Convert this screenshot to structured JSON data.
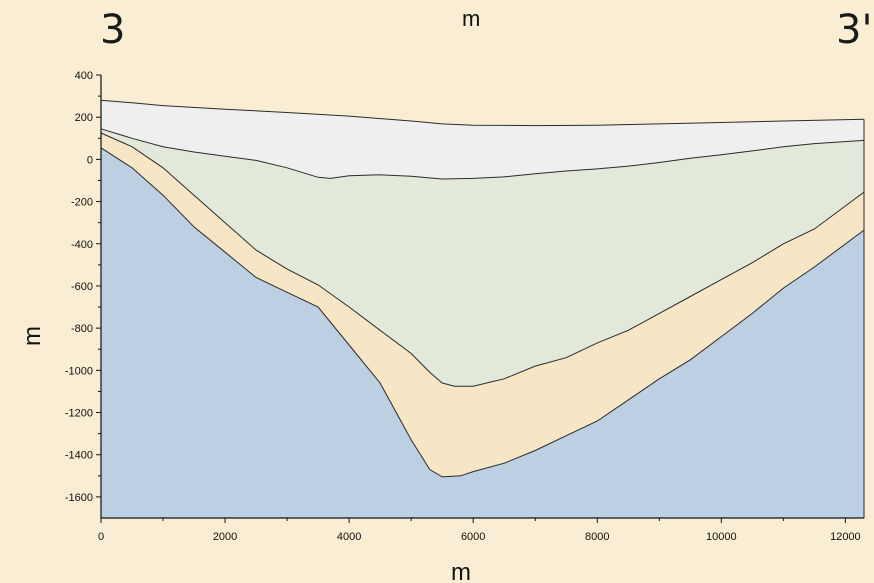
{
  "section": {
    "left_label": "3",
    "right_label": "3'",
    "top_unit": "m"
  },
  "chart_data": {
    "type": "area",
    "title": "",
    "xlabel": "m",
    "ylabel": "m",
    "xlim": [
      0,
      12300
    ],
    "ylim": [
      -1700,
      400
    ],
    "x_ticks": [
      0,
      2000,
      4000,
      6000,
      8000,
      10000,
      12000
    ],
    "y_ticks": [
      400,
      200,
      0,
      -200,
      -400,
      -600,
      -800,
      -1000,
      -1200,
      -1400,
      -1600
    ],
    "grid": false,
    "legend": "none",
    "series": [
      {
        "color": "#efefef",
        "points": [
          [
            0,
            280
          ],
          [
            500,
            268
          ],
          [
            1000,
            255
          ],
          [
            2000,
            238
          ],
          [
            3000,
            222
          ],
          [
            4000,
            205
          ],
          [
            5000,
            182
          ],
          [
            5500,
            168
          ],
          [
            6000,
            162
          ],
          [
            7000,
            160
          ],
          [
            8000,
            162
          ],
          [
            9000,
            168
          ],
          [
            10000,
            175
          ],
          [
            11000,
            182
          ],
          [
            12300,
            190
          ]
        ]
      },
      {
        "color": "#e3e9da",
        "points": [
          [
            0,
            145
          ],
          [
            500,
            100
          ],
          [
            1000,
            60
          ],
          [
            1500,
            35
          ],
          [
            2000,
            15
          ],
          [
            2500,
            -5
          ],
          [
            3000,
            -40
          ],
          [
            3500,
            -85
          ],
          [
            3700,
            -90
          ],
          [
            4000,
            -78
          ],
          [
            4500,
            -73
          ],
          [
            5000,
            -80
          ],
          [
            5500,
            -93
          ],
          [
            6000,
            -90
          ],
          [
            6500,
            -83
          ],
          [
            7000,
            -68
          ],
          [
            7500,
            -55
          ],
          [
            8000,
            -45
          ],
          [
            8500,
            -32
          ],
          [
            9000,
            -15
          ],
          [
            9500,
            5
          ],
          [
            10000,
            22
          ],
          [
            10500,
            40
          ],
          [
            11000,
            60
          ],
          [
            11500,
            75
          ],
          [
            12300,
            90
          ]
        ]
      },
      {
        "color": "#f6e6c6",
        "points": [
          [
            0,
            125
          ],
          [
            500,
            60
          ],
          [
            1000,
            -40
          ],
          [
            1500,
            -170
          ],
          [
            2000,
            -300
          ],
          [
            2500,
            -430
          ],
          [
            3000,
            -520
          ],
          [
            3500,
            -595
          ],
          [
            4000,
            -700
          ],
          [
            4500,
            -810
          ],
          [
            5000,
            -920
          ],
          [
            5300,
            -1010
          ],
          [
            5500,
            -1060
          ],
          [
            5700,
            -1075
          ],
          [
            6000,
            -1075
          ],
          [
            6500,
            -1040
          ],
          [
            7000,
            -980
          ],
          [
            7500,
            -940
          ],
          [
            8000,
            -870
          ],
          [
            8500,
            -810
          ],
          [
            9000,
            -730
          ],
          [
            9500,
            -650
          ],
          [
            10000,
            -570
          ],
          [
            10500,
            -490
          ],
          [
            11000,
            -400
          ],
          [
            11500,
            -330
          ],
          [
            12300,
            -155
          ]
        ]
      },
      {
        "color": "#bccfe3",
        "points": [
          [
            0,
            55
          ],
          [
            500,
            -40
          ],
          [
            1000,
            -170
          ],
          [
            1500,
            -320
          ],
          [
            2000,
            -440
          ],
          [
            2500,
            -560
          ],
          [
            3000,
            -630
          ],
          [
            3500,
            -700
          ],
          [
            4000,
            -880
          ],
          [
            4500,
            -1060
          ],
          [
            5000,
            -1330
          ],
          [
            5300,
            -1470
          ],
          [
            5500,
            -1505
          ],
          [
            5800,
            -1500
          ],
          [
            6000,
            -1480
          ],
          [
            6500,
            -1440
          ],
          [
            7000,
            -1380
          ],
          [
            7500,
            -1310
          ],
          [
            8000,
            -1240
          ],
          [
            8500,
            -1140
          ],
          [
            9000,
            -1040
          ],
          [
            9500,
            -950
          ],
          [
            10000,
            -840
          ],
          [
            10500,
            -730
          ],
          [
            11000,
            -610
          ],
          [
            11500,
            -510
          ],
          [
            12300,
            -335
          ]
        ]
      }
    ]
  }
}
